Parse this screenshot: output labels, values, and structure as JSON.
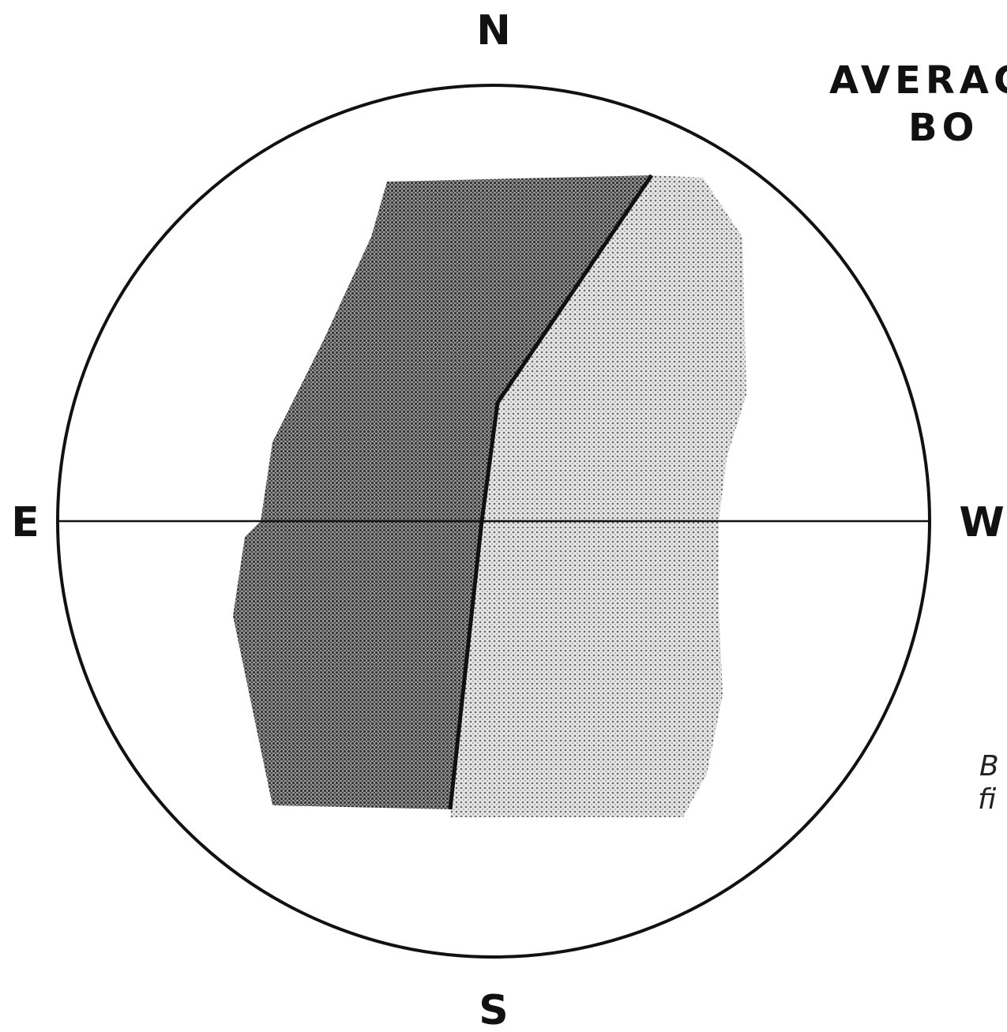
{
  "compass": {
    "north": "N",
    "south": "S",
    "east": "E",
    "west": "W"
  },
  "title": {
    "line1": "AVERAG",
    "line2": "BO"
  },
  "caption": {
    "line1": "B",
    "line2": "fi"
  }
}
